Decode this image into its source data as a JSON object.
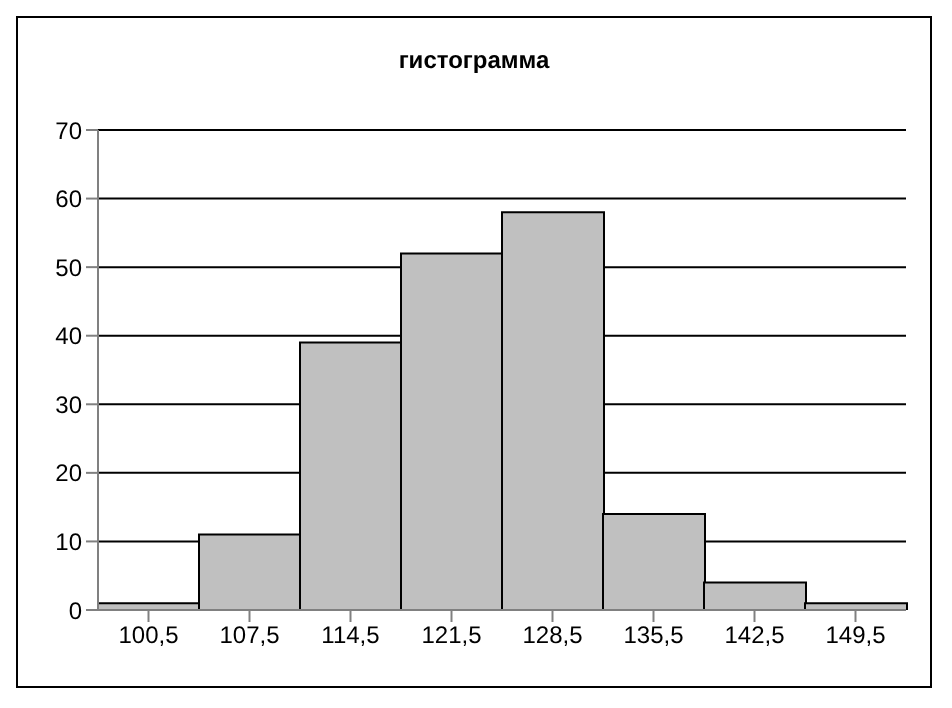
{
  "chart_data": {
    "type": "bar",
    "title": "гистограмма",
    "categories": [
      "100,5",
      "107,5",
      "114,5",
      "121,5",
      "128,5",
      "135,5",
      "142,5",
      "149,5"
    ],
    "values": [
      1,
      11,
      39,
      52,
      58,
      14,
      4,
      1
    ],
    "color": "#c0c0c0",
    "ylim": [
      0,
      70
    ],
    "yticks": [
      0,
      10,
      20,
      30,
      40,
      50,
      60,
      70
    ],
    "grid": "y",
    "legend": false
  }
}
